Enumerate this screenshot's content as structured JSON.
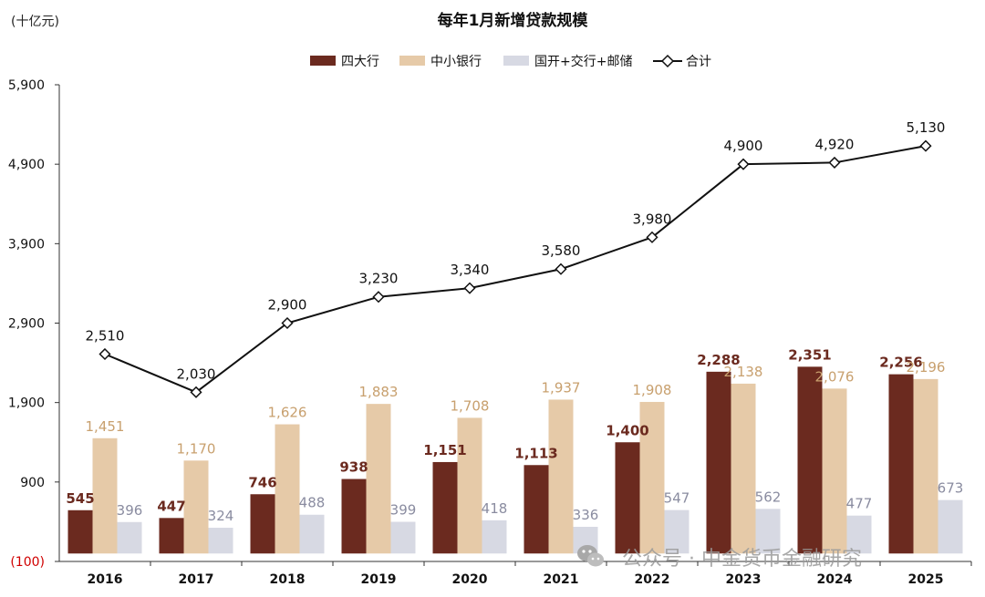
{
  "chart_data": {
    "type": "bar",
    "title": "每年1月新增贷款规模",
    "unit_label": "(十亿元)",
    "categories": [
      "2016",
      "2017",
      "2018",
      "2019",
      "2020",
      "2021",
      "2022",
      "2023",
      "2024",
      "2025"
    ],
    "series": [
      {
        "name": "四大行",
        "kind": "bar",
        "color": "#6b2a1f",
        "label_color": "#6b2a1f",
        "values": [
          545,
          447,
          746,
          938,
          1151,
          1113,
          1400,
          2288,
          2351,
          2256
        ],
        "labels": [
          "545",
          "447",
          "746",
          "938",
          "1,151",
          "1,113",
          "1,400",
          "2,288",
          "2,351",
          "2,256"
        ]
      },
      {
        "name": "中小银行",
        "kind": "bar",
        "color": "#e6caa8",
        "label_color": "#c8a06e",
        "values": [
          1451,
          1170,
          1626,
          1883,
          1708,
          1937,
          1908,
          2138,
          2076,
          2196
        ],
        "labels": [
          "1,451",
          "1,170",
          "1,626",
          "1,883",
          "1,708",
          "1,937",
          "1,908",
          "2,138",
          "2,076",
          "2,196"
        ]
      },
      {
        "name": "国开+交行+邮储",
        "kind": "bar",
        "color": "#d7d9e3",
        "label_color": "#8a8ca0",
        "values": [
          396,
          324,
          488,
          399,
          418,
          336,
          547,
          562,
          477,
          673
        ],
        "labels": [
          "396",
          "324",
          "488",
          "399",
          "418",
          "336",
          "547",
          "562",
          "477",
          "673"
        ]
      },
      {
        "name": "合计",
        "kind": "line",
        "color": "#111111",
        "label_color": "#111111",
        "values": [
          2510,
          2030,
          2900,
          3230,
          3340,
          3580,
          3980,
          4900,
          4920,
          5130
        ],
        "labels": [
          "2,510",
          "2,030",
          "2,900",
          "3,230",
          "3,340",
          "3,580",
          "3,980",
          "4,900",
          "4,920",
          "5,130"
        ]
      }
    ],
    "ylim": [
      -100,
      5900
    ],
    "yticks": [
      -100,
      900,
      1900,
      2900,
      3900,
      4900,
      5900
    ],
    "ytick_labels": [
      "(100)",
      "900",
      "1,900",
      "2,900",
      "3,900",
      "4,900",
      "5,900"
    ],
    "negative_tick_color": "#d00000",
    "legend_position": "top-center",
    "grid": false
  },
  "watermark": "公众号 · 中金货币金融研究"
}
